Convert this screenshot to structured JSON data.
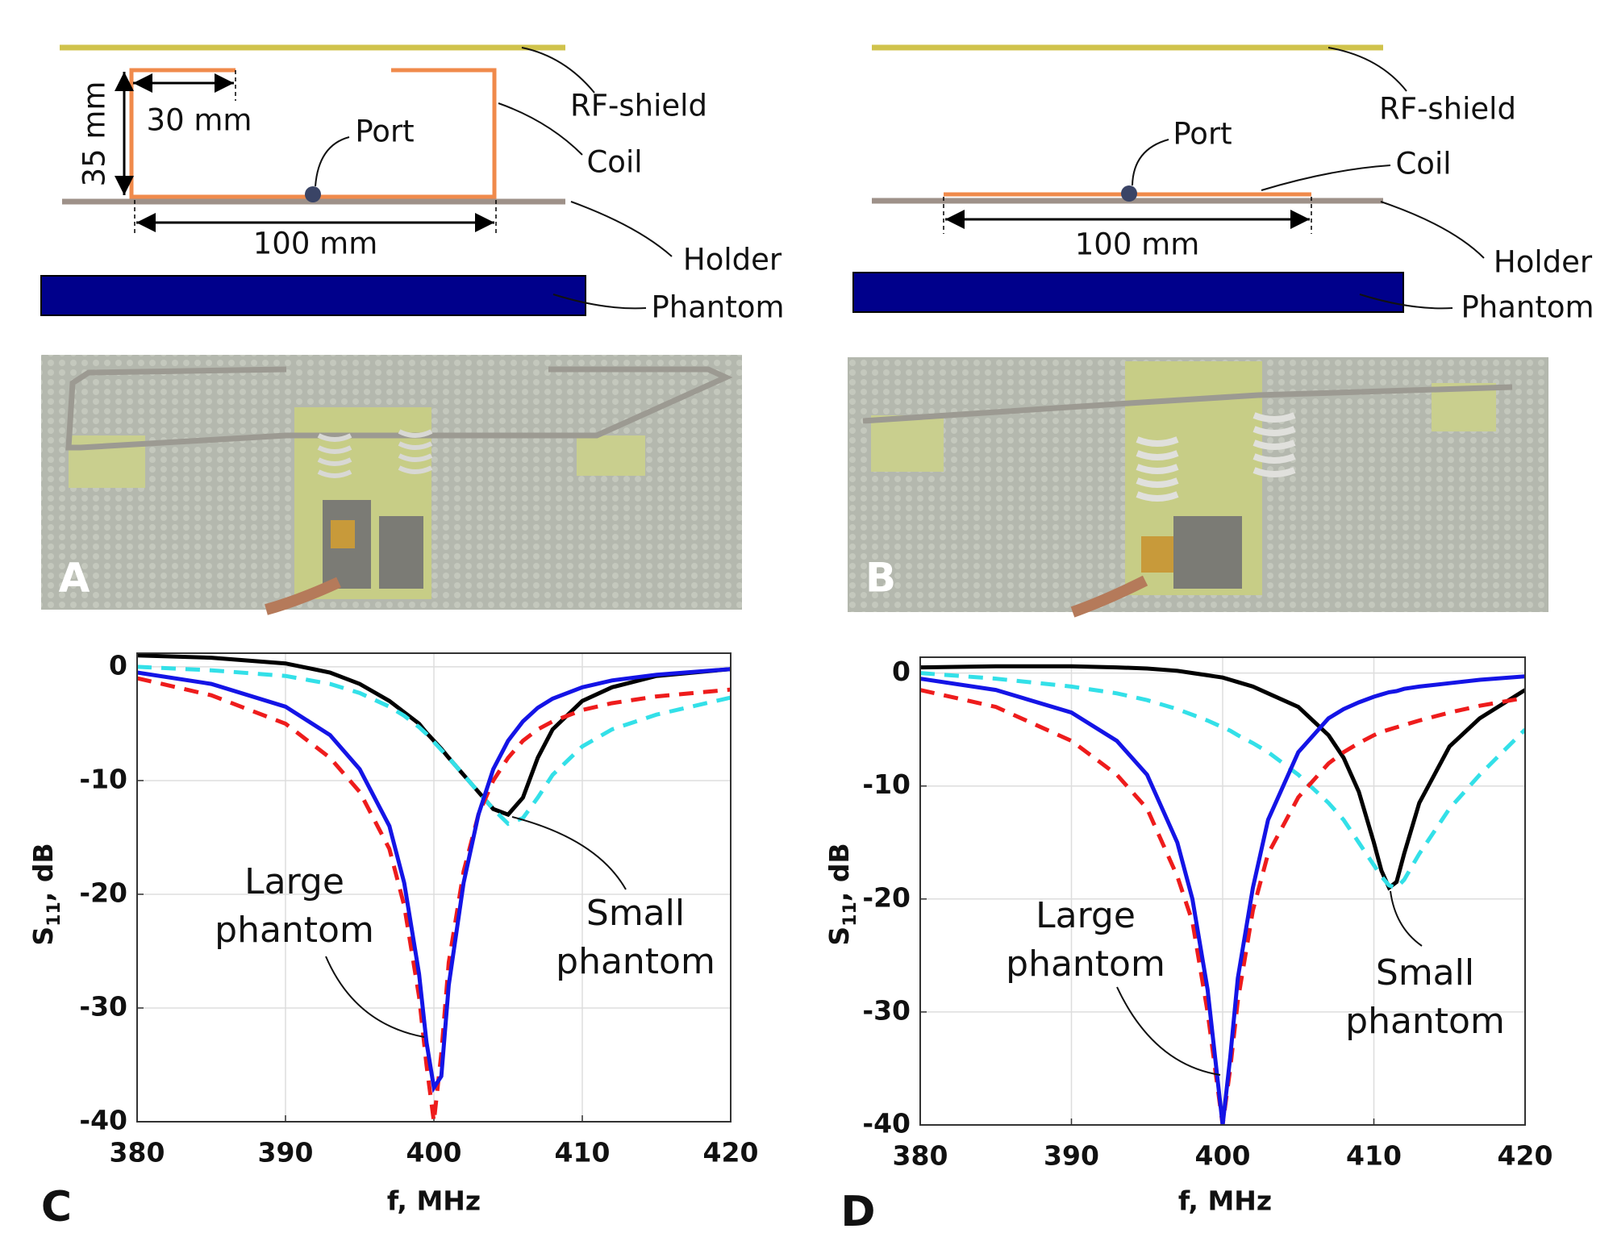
{
  "diagrams": [
    {
      "shield_label": "RF-shield",
      "coil_label": "Coil",
      "port_label": "Port",
      "holder_label": "Holder",
      "phantom_label": "Phantom",
      "width_label": "100 mm",
      "height_label": "35 mm",
      "arm_label": "30 mm"
    },
    {
      "shield_label": "RF-shield",
      "coil_label": "Coil",
      "port_label": "Port",
      "holder_label": "Holder",
      "phantom_label": "Phantom",
      "width_label": "100 mm"
    }
  ],
  "photos": [
    {
      "label": "A"
    },
    {
      "label": "B"
    }
  ],
  "chart_data": [
    {
      "type": "line",
      "panel": "C",
      "xlabel": "f, MHz",
      "ylabel": [
        "S",
        "11",
        ", dB"
      ],
      "x": [
        380,
        385,
        390,
        393,
        395,
        397,
        398,
        399,
        399.5,
        400,
        400.5,
        401,
        402,
        403,
        404,
        405,
        406,
        407,
        408,
        410,
        412,
        415,
        420
      ],
      "xlim": [
        380,
        420
      ],
      "ylim": [
        -40,
        1.2
      ],
      "xticks": [
        380,
        390,
        400,
        410,
        420
      ],
      "yticks": [
        -40,
        -30,
        -20,
        -10,
        0
      ],
      "grid": true,
      "series": [
        {
          "color": "#000000",
          "style": "solid",
          "values": [
            1,
            0.8,
            0.3,
            -0.5,
            -1.5,
            -3,
            -4,
            -5,
            -5.8,
            -6.5,
            -7.2,
            -8,
            -9.5,
            -11,
            -12.5,
            -13,
            -11.5,
            -8,
            -5.5,
            -3,
            -1.8,
            -0.8,
            -0.2
          ]
        },
        {
          "color": "#33e0e8",
          "style": "dashed",
          "values": [
            0,
            -0.3,
            -0.8,
            -1.5,
            -2.3,
            -3.5,
            -4.3,
            -5.3,
            -5.9,
            -6.6,
            -7.3,
            -8,
            -9.5,
            -11,
            -12.5,
            -13.8,
            -13.3,
            -11.5,
            -9.5,
            -7,
            -5.5,
            -4.2,
            -2.7
          ]
        },
        {
          "color": "#ee1c1c",
          "style": "dashed",
          "values": [
            -1,
            -2.5,
            -5,
            -8,
            -11,
            -16,
            -21,
            -29,
            -35,
            -40,
            -34,
            -26,
            -18,
            -13,
            -10,
            -8,
            -6.5,
            -5.5,
            -4.8,
            -3.8,
            -3.2,
            -2.6,
            -2
          ]
        },
        {
          "color": "#1414e6",
          "style": "solid",
          "values": [
            -0.5,
            -1.5,
            -3.5,
            -6,
            -9,
            -14,
            -19,
            -27,
            -33,
            -37,
            -36,
            -28,
            -19,
            -13,
            -9,
            -6.5,
            -4.8,
            -3.6,
            -2.8,
            -1.8,
            -1.2,
            -0.7,
            -0.2
          ]
        }
      ],
      "annotations": [
        {
          "lines": [
            "Large",
            "phantom"
          ]
        },
        {
          "lines": [
            "Small",
            "phantom"
          ]
        }
      ]
    },
    {
      "type": "line",
      "panel": "D",
      "xlabel": "f, MHz",
      "ylabel": [
        "S",
        "11",
        ", dB"
      ],
      "x": [
        380,
        385,
        390,
        393,
        395,
        397,
        398,
        399,
        399.5,
        400,
        400.5,
        401,
        402,
        403,
        405,
        407,
        408,
        409,
        410,
        410.5,
        411,
        411.5,
        412,
        413,
        415,
        417,
        420
      ],
      "xlim": [
        380,
        420
      ],
      "ylim": [
        -40,
        1.4
      ],
      "xticks": [
        380,
        390,
        400,
        410,
        420
      ],
      "yticks": [
        -40,
        -30,
        -20,
        -10,
        0
      ],
      "grid": true,
      "series": [
        {
          "color": "#000000",
          "style": "solid",
          "values": [
            0.5,
            0.6,
            0.6,
            0.5,
            0.4,
            0.2,
            0,
            -0.2,
            -0.3,
            -0.4,
            -0.6,
            -0.8,
            -1.2,
            -1.8,
            -3,
            -5.5,
            -7.5,
            -10.5,
            -15,
            -17.5,
            -19,
            -18.5,
            -16,
            -11.5,
            -6.5,
            -4,
            -1.5
          ]
        },
        {
          "color": "#33e0e8",
          "style": "dashed",
          "values": [
            0,
            -0.5,
            -1.2,
            -1.8,
            -2.4,
            -3.2,
            -3.7,
            -4.2,
            -4.5,
            -4.8,
            -5.1,
            -5.5,
            -6.2,
            -7,
            -9,
            -11.5,
            -13,
            -15,
            -17,
            -18,
            -18.8,
            -19,
            -18.3,
            -16,
            -12,
            -9,
            -5
          ]
        },
        {
          "color": "#ee1c1c",
          "style": "dashed",
          "values": [
            -1.5,
            -3,
            -6,
            -9,
            -12,
            -18,
            -22,
            -30,
            -35,
            -40,
            -35,
            -29,
            -21,
            -16,
            -11,
            -8,
            -7,
            -6.2,
            -5.5,
            -5.2,
            -5,
            -4.8,
            -4.6,
            -4.2,
            -3.5,
            -2.9,
            -2.2
          ]
        },
        {
          "color": "#1414e6",
          "style": "solid",
          "values": [
            -0.5,
            -1.5,
            -3.5,
            -6,
            -9,
            -15,
            -20,
            -28,
            -34,
            -40,
            -34,
            -27,
            -19,
            -13,
            -7,
            -4,
            -3.2,
            -2.6,
            -2.1,
            -1.9,
            -1.7,
            -1.6,
            -1.4,
            -1.2,
            -0.9,
            -0.6,
            -0.3
          ]
        }
      ],
      "annotations": [
        {
          "lines": [
            "Large",
            "phantom"
          ]
        },
        {
          "lines": [
            "Small",
            "phantom"
          ]
        }
      ]
    }
  ]
}
